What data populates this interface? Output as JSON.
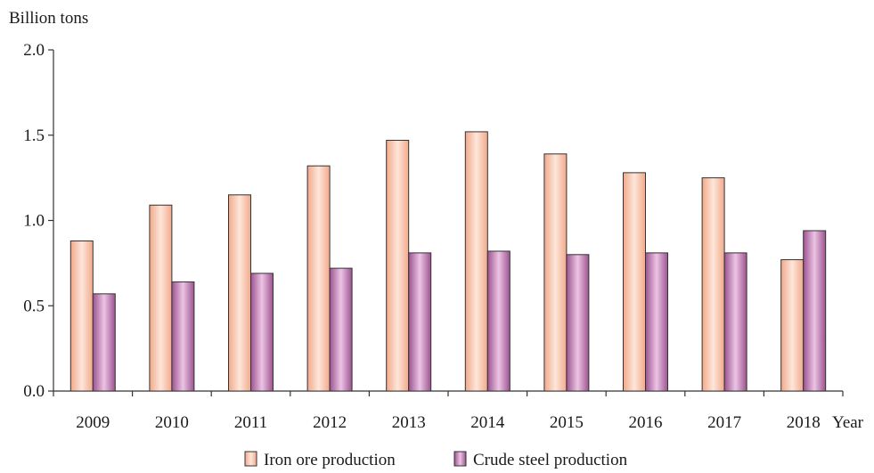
{
  "chart_data": {
    "type": "bar",
    "ylabel": "Billion tons",
    "xlabel": "Year",
    "ylim": [
      0,
      2.0
    ],
    "yticks": [
      "0.0",
      "0.5",
      "1.0",
      "1.5",
      "2.0"
    ],
    "categories": [
      "2009",
      "2010",
      "2011",
      "2012",
      "2013",
      "2014",
      "2015",
      "2016",
      "2017",
      "2018"
    ],
    "series": [
      {
        "name": "Iron ore production",
        "values": [
          0.88,
          1.09,
          1.15,
          1.32,
          1.47,
          1.52,
          1.39,
          1.28,
          1.25,
          0.77
        ],
        "color": "#f4b89a"
      },
      {
        "name": "Crude steel production",
        "values": [
          0.57,
          0.64,
          0.69,
          0.72,
          0.81,
          0.82,
          0.8,
          0.81,
          0.81,
          0.94
        ],
        "color": "#b06aa4"
      }
    ],
    "grid": false,
    "legend_position": "bottom"
  }
}
